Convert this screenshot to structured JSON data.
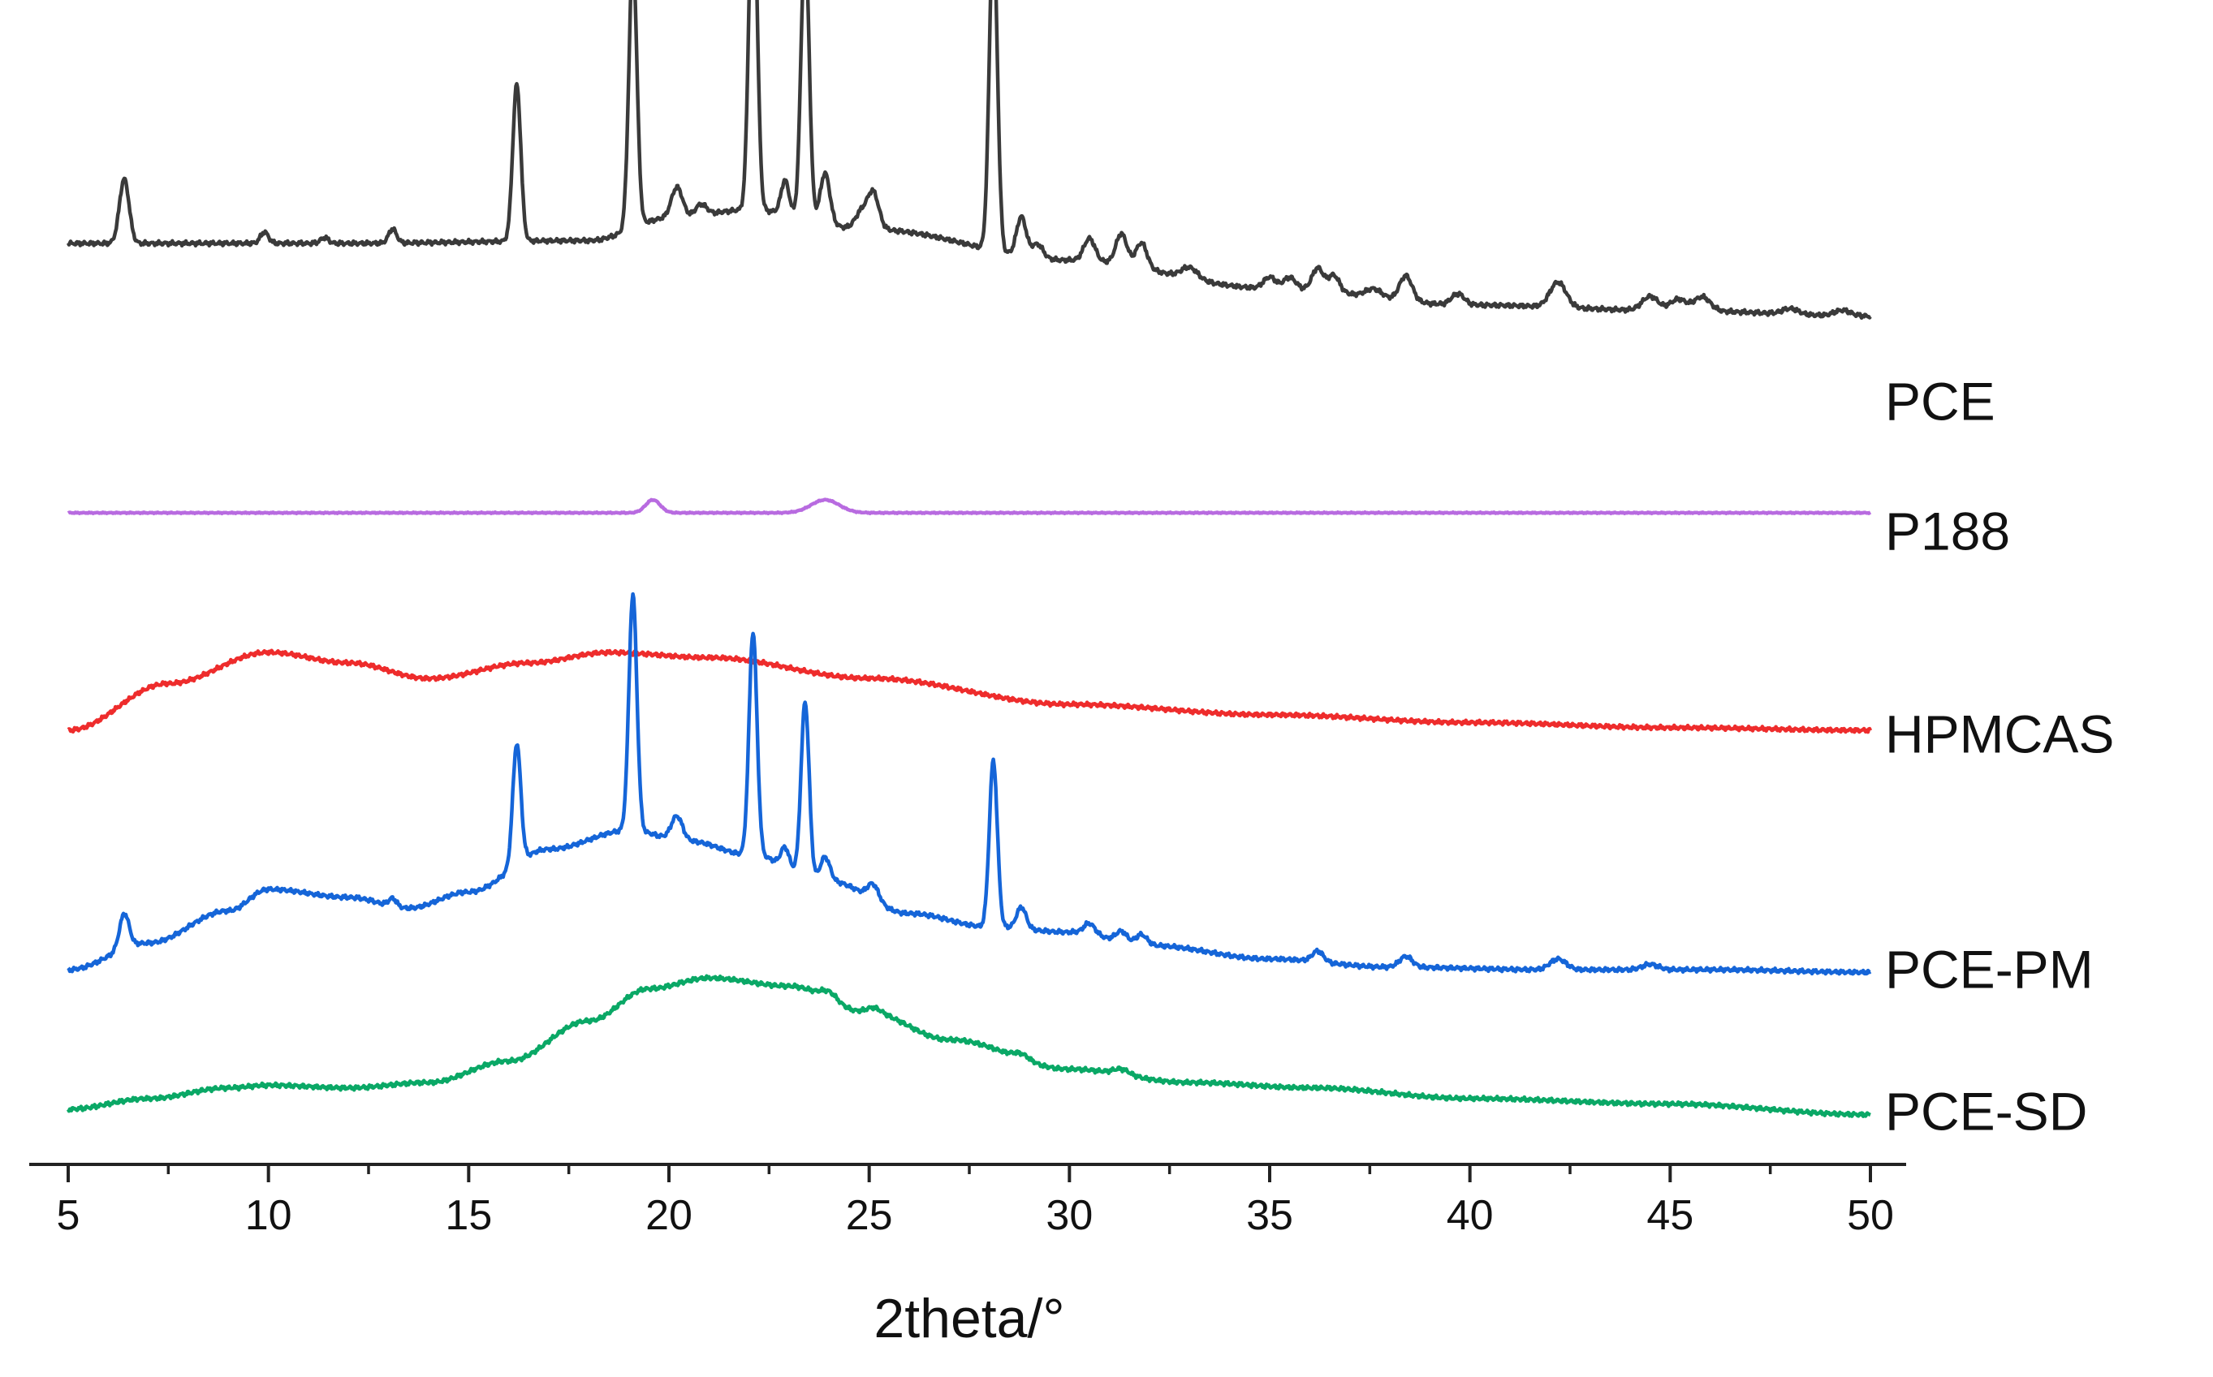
{
  "chart_data": {
    "type": "line",
    "title": "",
    "xlabel": "2theta/°",
    "ylabel": "",
    "xlim": [
      4,
      51
    ],
    "xticks": [
      5,
      10,
      15,
      20,
      25,
      30,
      35,
      40,
      45,
      50
    ],
    "grid": false,
    "legend": "labels at right end of each trace",
    "intensity_units": "arbitrary (stacked offsets)",
    "series": [
      {
        "name": "PCE",
        "color": "#3a3a3a",
        "baseline": [
          [
            5,
            58
          ],
          [
            12,
            58
          ],
          [
            18,
            59
          ],
          [
            20,
            67
          ],
          [
            22,
            70
          ],
          [
            25,
            63
          ],
          [
            30,
            52
          ],
          [
            35,
            42
          ],
          [
            40,
            36
          ],
          [
            45,
            34
          ],
          [
            50,
            32
          ]
        ],
        "peaks": [
          [
            6.4,
            23,
            0.12
          ],
          [
            9.9,
            4,
            0.1
          ],
          [
            11.4,
            2,
            0.1
          ],
          [
            13.1,
            5,
            0.1
          ],
          [
            16.2,
            56,
            0.1
          ],
          [
            19.1,
            96,
            0.1
          ],
          [
            20.2,
            11,
            0.14
          ],
          [
            20.8,
            4,
            0.14
          ],
          [
            22.1,
            125,
            0.1
          ],
          [
            22.9,
            12,
            0.1
          ],
          [
            23.4,
            100,
            0.1
          ],
          [
            23.9,
            18,
            0.12
          ],
          [
            24.8,
            6,
            0.15
          ],
          [
            25.1,
            13,
            0.14
          ],
          [
            28.1,
            115,
            0.1
          ],
          [
            28.8,
            14,
            0.12
          ],
          [
            29.2,
            5,
            0.14
          ],
          [
            30.5,
            8,
            0.14
          ],
          [
            31.3,
            11,
            0.14
          ],
          [
            31.8,
            9,
            0.14
          ],
          [
            33.0,
            4,
            0.2
          ],
          [
            35.0,
            4,
            0.15
          ],
          [
            35.5,
            4,
            0.15
          ],
          [
            36.2,
            8,
            0.14
          ],
          [
            36.6,
            6,
            0.14
          ],
          [
            37.6,
            3,
            0.2
          ],
          [
            38.4,
            9,
            0.16
          ],
          [
            39.7,
            4,
            0.16
          ],
          [
            42.2,
            9,
            0.2
          ],
          [
            44.5,
            5,
            0.2
          ],
          [
            45.2,
            4,
            0.2
          ],
          [
            45.8,
            5,
            0.2
          ],
          [
            48.0,
            2,
            0.2
          ],
          [
            49.3,
            2,
            0.2
          ]
        ]
      },
      {
        "name": "P188",
        "color": "#b86be0",
        "baseline": [
          [
            5,
            0
          ],
          [
            50,
            0
          ]
        ],
        "peaks": [
          [
            19.6,
            5,
            0.18
          ],
          [
            23.9,
            5,
            0.35
          ]
        ]
      },
      {
        "name": "HPMCAS",
        "color": "#ee2c2c",
        "baseline": [
          [
            5,
            0
          ],
          [
            7.5,
            18
          ],
          [
            10,
            30
          ],
          [
            12,
            26
          ],
          [
            14,
            20
          ],
          [
            16.5,
            26
          ],
          [
            18.5,
            30
          ],
          [
            21,
            28
          ],
          [
            25,
            20
          ],
          [
            30,
            10
          ],
          [
            35,
            6
          ],
          [
            40,
            3
          ],
          [
            45,
            1
          ],
          [
            50,
            0
          ]
        ],
        "peaks": []
      },
      {
        "name": "PCE-PM",
        "color": "#1565d8",
        "baseline": [
          [
            5,
            0
          ],
          [
            7,
            10
          ],
          [
            9,
            22
          ],
          [
            10,
            30
          ],
          [
            12,
            27
          ],
          [
            13.5,
            23
          ],
          [
            15,
            29
          ],
          [
            17,
            45
          ],
          [
            19,
            52
          ],
          [
            20.5,
            48
          ],
          [
            22,
            43
          ],
          [
            24,
            33
          ],
          [
            26,
            21
          ],
          [
            28,
            16
          ],
          [
            30,
            14
          ],
          [
            32,
            9
          ],
          [
            35,
            4
          ],
          [
            38,
            1
          ],
          [
            42,
            0
          ],
          [
            46,
            0
          ],
          [
            50,
            -1
          ]
        ],
        "peaks": [
          [
            6.4,
            13,
            0.12
          ],
          [
            13.1,
            3,
            0.1
          ],
          [
            16.2,
            45,
            0.1
          ],
          [
            19.1,
            88,
            0.1
          ],
          [
            20.2,
            9,
            0.14
          ],
          [
            22.1,
            83,
            0.1
          ],
          [
            22.9,
            7,
            0.1
          ],
          [
            23.4,
            65,
            0.1
          ],
          [
            23.9,
            9,
            0.12
          ],
          [
            25.1,
            6,
            0.14
          ],
          [
            28.1,
            62,
            0.1
          ],
          [
            28.8,
            8,
            0.12
          ],
          [
            30.5,
            4,
            0.14
          ],
          [
            31.3,
            4,
            0.14
          ],
          [
            31.8,
            4,
            0.14
          ],
          [
            36.2,
            4,
            0.14
          ],
          [
            38.4,
            4,
            0.16
          ],
          [
            42.2,
            4,
            0.2
          ],
          [
            44.5,
            2,
            0.2
          ]
        ]
      },
      {
        "name": "PCE-SD",
        "color": "#0aa866",
        "baseline": [
          [
            5,
            0
          ],
          [
            7,
            4
          ],
          [
            9,
            8
          ],
          [
            10,
            9
          ],
          [
            12,
            8
          ],
          [
            14,
            10
          ],
          [
            16,
            18
          ],
          [
            18,
            33
          ],
          [
            19.5,
            45
          ],
          [
            21,
            49
          ],
          [
            23,
            46
          ],
          [
            25,
            36
          ],
          [
            27,
            26
          ],
          [
            30,
            15
          ],
          [
            33,
            10
          ],
          [
            36,
            8
          ],
          [
            40,
            4
          ],
          [
            45,
            2
          ],
          [
            50,
            -2
          ]
        ],
        "peaks": [
          [
            24.0,
            3,
            0.2
          ],
          [
            25.1,
            2,
            0.2
          ],
          [
            28.8,
            2,
            0.2
          ],
          [
            31.3,
            2,
            0.2
          ]
        ]
      }
    ]
  }
}
